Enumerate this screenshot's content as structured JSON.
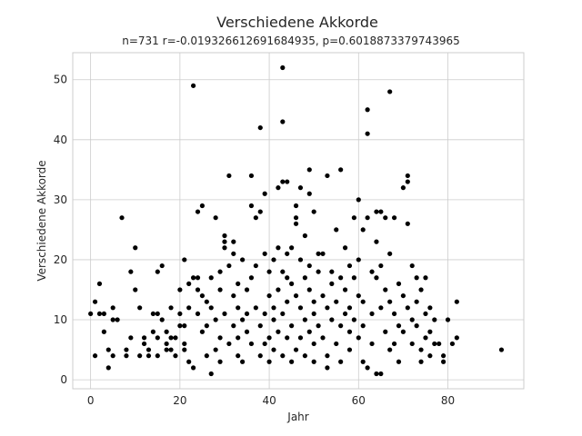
{
  "chart_data": {
    "type": "scatter",
    "title": "Verschiedene Akkorde",
    "subtitle": "n=731 r=-0.019326612691684935, p=0.6018873379743965",
    "xlabel": "Jahr",
    "ylabel": "Verschiedene Akkorde",
    "xlim": [
      -4,
      97
    ],
    "ylim": [
      -1.5,
      54.5
    ],
    "xticks": [
      0,
      20,
      40,
      60,
      80
    ],
    "yticks": [
      0,
      10,
      20,
      30,
      40,
      50
    ],
    "grid": true,
    "marker_color": "#000000",
    "points": [
      [
        0,
        11
      ],
      [
        1,
        4
      ],
      [
        1,
        13
      ],
      [
        2,
        16
      ],
      [
        2,
        11
      ],
      [
        3,
        11
      ],
      [
        3,
        8
      ],
      [
        4,
        2
      ],
      [
        4,
        5
      ],
      [
        5,
        4
      ],
      [
        5,
        12
      ],
      [
        5,
        10
      ],
      [
        6,
        10
      ],
      [
        7,
        27
      ],
      [
        8,
        4
      ],
      [
        8,
        5
      ],
      [
        9,
        18
      ],
      [
        9,
        7
      ],
      [
        10,
        22
      ],
      [
        10,
        15
      ],
      [
        11,
        12
      ],
      [
        11,
        4
      ],
      [
        12,
        6
      ],
      [
        12,
        7
      ],
      [
        13,
        4
      ],
      [
        13,
        5
      ],
      [
        14,
        8
      ],
      [
        14,
        11
      ],
      [
        15,
        11
      ],
      [
        15,
        4
      ],
      [
        15,
        7
      ],
      [
        15,
        18
      ],
      [
        16,
        19
      ],
      [
        16,
        10
      ],
      [
        17,
        5
      ],
      [
        17,
        6
      ],
      [
        17,
        8
      ],
      [
        18,
        5
      ],
      [
        18,
        7
      ],
      [
        18,
        12
      ],
      [
        19,
        7
      ],
      [
        19,
        4
      ],
      [
        20,
        15
      ],
      [
        20,
        9
      ],
      [
        20,
        11
      ],
      [
        21,
        6
      ],
      [
        21,
        9
      ],
      [
        21,
        20
      ],
      [
        21,
        5
      ],
      [
        22,
        12
      ],
      [
        22,
        16
      ],
      [
        22,
        3
      ],
      [
        23,
        2
      ],
      [
        23,
        17
      ],
      [
        23,
        49
      ],
      [
        24,
        15
      ],
      [
        24,
        17
      ],
      [
        24,
        28
      ],
      [
        24,
        11
      ],
      [
        25,
        8
      ],
      [
        25,
        14
      ],
      [
        25,
        29
      ],
      [
        26,
        4
      ],
      [
        26,
        9
      ],
      [
        26,
        13
      ],
      [
        27,
        1
      ],
      [
        27,
        12
      ],
      [
        27,
        17
      ],
      [
        28,
        27
      ],
      [
        28,
        5
      ],
      [
        28,
        10
      ],
      [
        29,
        7
      ],
      [
        29,
        3
      ],
      [
        29,
        15
      ],
      [
        29,
        18
      ],
      [
        30,
        23
      ],
      [
        30,
        24
      ],
      [
        30,
        22
      ],
      [
        30,
        11
      ],
      [
        31,
        34
      ],
      [
        31,
        6
      ],
      [
        31,
        19
      ],
      [
        32,
        23
      ],
      [
        32,
        21
      ],
      [
        32,
        9
      ],
      [
        32,
        14
      ],
      [
        33,
        4
      ],
      [
        33,
        7
      ],
      [
        33,
        12
      ],
      [
        33,
        16
      ],
      [
        34,
        20
      ],
      [
        34,
        3
      ],
      [
        34,
        10
      ],
      [
        35,
        15
      ],
      [
        35,
        11
      ],
      [
        35,
        8
      ],
      [
        36,
        34
      ],
      [
        36,
        29
      ],
      [
        36,
        17
      ],
      [
        36,
        6
      ],
      [
        37,
        27
      ],
      [
        37,
        12
      ],
      [
        37,
        19
      ],
      [
        38,
        42
      ],
      [
        38,
        28
      ],
      [
        38,
        9
      ],
      [
        38,
        4
      ],
      [
        39,
        31
      ],
      [
        39,
        21
      ],
      [
        39,
        11
      ],
      [
        39,
        6
      ],
      [
        40,
        14
      ],
      [
        40,
        18
      ],
      [
        40,
        7
      ],
      [
        40,
        3
      ],
      [
        41,
        20
      ],
      [
        41,
        12
      ],
      [
        41,
        10
      ],
      [
        41,
        5
      ],
      [
        42,
        32
      ],
      [
        42,
        22
      ],
      [
        42,
        15
      ],
      [
        42,
        8
      ],
      [
        43,
        52
      ],
      [
        43,
        43
      ],
      [
        43,
        33
      ],
      [
        43,
        18
      ],
      [
        43,
        11
      ],
      [
        43,
        4
      ],
      [
        44,
        33
      ],
      [
        44,
        21
      ],
      [
        44,
        17
      ],
      [
        44,
        13
      ],
      [
        44,
        7
      ],
      [
        45,
        22
      ],
      [
        45,
        16
      ],
      [
        45,
        9
      ],
      [
        45,
        3
      ],
      [
        46,
        29
      ],
      [
        46,
        27
      ],
      [
        46,
        26
      ],
      [
        46,
        14
      ],
      [
        46,
        5
      ],
      [
        47,
        32
      ],
      [
        47,
        20
      ],
      [
        47,
        12
      ],
      [
        47,
        7
      ],
      [
        48,
        24
      ],
      [
        48,
        17
      ],
      [
        48,
        10
      ],
      [
        48,
        4
      ],
      [
        49,
        35
      ],
      [
        49,
        31
      ],
      [
        49,
        19
      ],
      [
        49,
        15
      ],
      [
        49,
        8
      ],
      [
        50,
        28
      ],
      [
        50,
        11
      ],
      [
        50,
        13
      ],
      [
        50,
        6
      ],
      [
        50,
        3
      ],
      [
        51,
        21
      ],
      [
        51,
        18
      ],
      [
        51,
        9
      ],
      [
        52,
        21
      ],
      [
        52,
        14
      ],
      [
        52,
        7
      ],
      [
        53,
        34
      ],
      [
        53,
        12
      ],
      [
        53,
        4
      ],
      [
        53,
        2
      ],
      [
        54,
        18
      ],
      [
        54,
        10
      ],
      [
        54,
        16
      ],
      [
        55,
        25
      ],
      [
        55,
        13
      ],
      [
        55,
        6
      ],
      [
        56,
        35
      ],
      [
        56,
        17
      ],
      [
        56,
        9
      ],
      [
        56,
        3
      ],
      [
        57,
        22
      ],
      [
        57,
        15
      ],
      [
        57,
        11
      ],
      [
        58,
        19
      ],
      [
        58,
        12
      ],
      [
        58,
        8
      ],
      [
        58,
        5
      ],
      [
        59,
        27
      ],
      [
        59,
        17
      ],
      [
        59,
        10
      ],
      [
        60,
        30
      ],
      [
        60,
        20
      ],
      [
        60,
        14
      ],
      [
        60,
        7
      ],
      [
        61,
        25
      ],
      [
        61,
        13
      ],
      [
        61,
        9
      ],
      [
        61,
        3
      ],
      [
        62,
        45
      ],
      [
        62,
        41
      ],
      [
        62,
        27
      ],
      [
        62,
        2
      ],
      [
        63,
        18
      ],
      [
        63,
        11
      ],
      [
        63,
        6
      ],
      [
        64,
        28
      ],
      [
        64,
        23
      ],
      [
        64,
        17
      ],
      [
        64,
        1
      ],
      [
        65,
        28
      ],
      [
        65,
        19
      ],
      [
        65,
        12
      ],
      [
        65,
        1
      ],
      [
        66,
        27
      ],
      [
        66,
        15
      ],
      [
        66,
        8
      ],
      [
        67,
        48
      ],
      [
        67,
        21
      ],
      [
        67,
        13
      ],
      [
        67,
        5
      ],
      [
        68,
        27
      ],
      [
        68,
        11
      ],
      [
        68,
        6
      ],
      [
        69,
        16
      ],
      [
        69,
        9
      ],
      [
        69,
        3
      ],
      [
        70,
        32
      ],
      [
        70,
        14
      ],
      [
        70,
        8
      ],
      [
        71,
        34
      ],
      [
        71,
        33
      ],
      [
        71,
        26
      ],
      [
        71,
        12
      ],
      [
        72,
        19
      ],
      [
        72,
        10
      ],
      [
        72,
        6
      ],
      [
        73,
        17
      ],
      [
        73,
        13
      ],
      [
        73,
        9
      ],
      [
        74,
        15
      ],
      [
        74,
        5
      ],
      [
        74,
        3
      ],
      [
        75,
        17
      ],
      [
        75,
        11
      ],
      [
        75,
        7
      ],
      [
        76,
        12
      ],
      [
        76,
        8
      ],
      [
        76,
        4
      ],
      [
        77,
        10
      ],
      [
        77,
        6
      ],
      [
        78,
        6
      ],
      [
        79,
        4
      ],
      [
        79,
        3
      ],
      [
        80,
        10
      ],
      [
        81,
        6
      ],
      [
        82,
        13
      ],
      [
        82,
        7
      ],
      [
        92,
        5
      ]
    ]
  }
}
